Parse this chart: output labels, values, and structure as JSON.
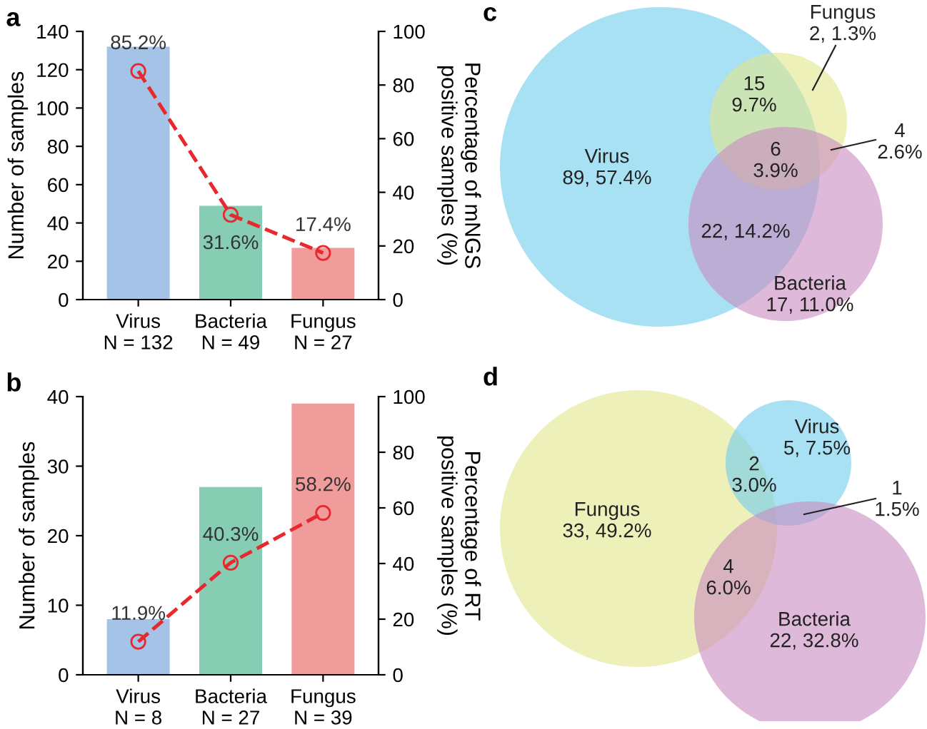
{
  "chart_data": [
    {
      "type": "bar",
      "title": "a",
      "categories": [
        "Virus\nN = 132",
        "Bacteria\nN = 49",
        "Fungus\nN = 27"
      ],
      "ylabel": "Number of samples",
      "y2label": "Percentage of mNGS\npositive samples (%)",
      "ylim": [
        0,
        140
      ],
      "yticks": [
        0,
        20,
        40,
        60,
        80,
        100,
        120,
        140
      ],
      "y2lim": [
        0,
        100
      ],
      "y2ticks": [
        0,
        20,
        40,
        60,
        80,
        100
      ],
      "series": [
        {
          "type": "bar",
          "colors": [
            "#a4c3e6",
            "#86cdb4",
            "#f09c9a"
          ],
          "values": [
            132,
            49,
            27
          ]
        },
        {
          "type": "line",
          "axis": "y2",
          "color": "#e8282d",
          "marker": "circle",
          "line_style": "dashed",
          "values": [
            85.2,
            31.6,
            17.4
          ],
          "value_labels": [
            "85.2%",
            "31.6%",
            "17.4%"
          ]
        }
      ]
    },
    {
      "type": "bar",
      "title": "b",
      "categories": [
        "Virus\nN = 8",
        "Bacteria\nN = 27",
        "Fungus\nN = 39"
      ],
      "ylabel": "Number of samples",
      "y2label": "Percentage of RT\npositive samples (%)",
      "ylim": [
        0,
        40
      ],
      "yticks": [
        0,
        10,
        20,
        30,
        40
      ],
      "y2lim": [
        0,
        100
      ],
      "y2ticks": [
        0,
        20,
        40,
        60,
        80,
        100
      ],
      "series": [
        {
          "type": "bar",
          "colors": [
            "#a4c3e6",
            "#86cdb4",
            "#f09c9a"
          ],
          "values": [
            8,
            27,
            39
          ]
        },
        {
          "type": "line",
          "axis": "y2",
          "color": "#e8282d",
          "marker": "circle",
          "line_style": "dashed",
          "values": [
            11.9,
            40.3,
            58.2
          ],
          "value_labels": [
            "11.9%",
            "40.3%",
            "58.2%"
          ]
        }
      ]
    },
    {
      "type": "other",
      "title": "c",
      "colors": [
        "#6ecbec",
        "#e3e68a",
        "#c98bc0"
      ],
      "annotations": [
        "Virus\n89, 57.4%",
        "Fungus\n2, 1.3%",
        "Bacteria\n17, 11.0%",
        "15\n9.7%",
        "22, 14.2%",
        "4\n2.6%",
        "6\n3.9%"
      ]
    },
    {
      "type": "other",
      "title": "d",
      "colors": [
        "#e3e68a",
        "#6ecbec",
        "#c98bc0"
      ],
      "annotations": [
        "Fungus\n33, 49.2%",
        "Virus\n5, 7.5%",
        "Bacteria\n22, 32.8%",
        "2\n3.0%",
        "4\n6.0%",
        "1\n1.5%"
      ]
    }
  ]
}
